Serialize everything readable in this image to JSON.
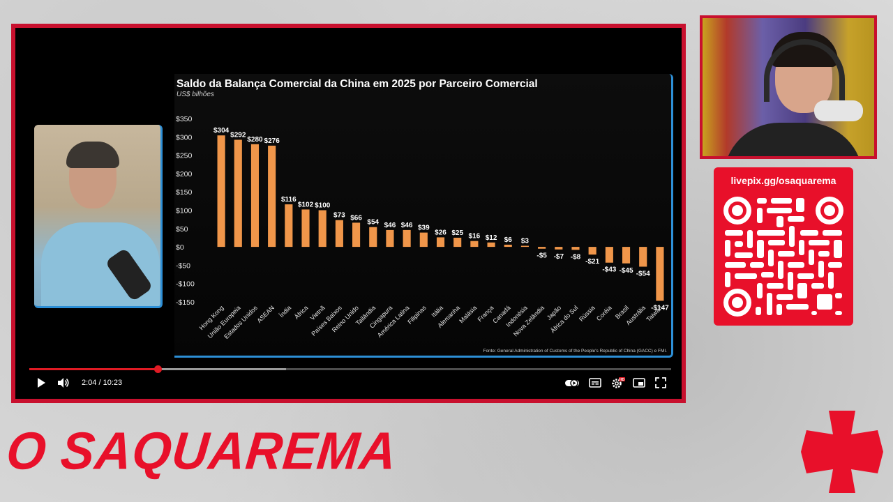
{
  "chart": {
    "title": "Saldo da Balança Comercial da China em 2025 por Parceiro Comercial",
    "subtitle": "US$ bilhões",
    "source": "Fonte: General Administration of Customs of the People's Republic of China (GACC) e FMI.",
    "bar_color": "#f0964a"
  },
  "chart_data": {
    "type": "bar",
    "title": "Saldo da Balança Comercial da China em 2025 por Parceiro Comercial",
    "subtitle": "US$ bilhões",
    "xlabel": "",
    "ylabel": "",
    "ylim": [
      -150,
      350
    ],
    "yticks": [
      350,
      300,
      250,
      200,
      150,
      100,
      50,
      0,
      -50,
      -100,
      -150
    ],
    "ytick_labels": [
      "$350",
      "$300",
      "$250",
      "$200",
      "$150",
      "$100",
      "$50",
      "$0",
      "-$50",
      "-$100",
      "-$150"
    ],
    "grid": false,
    "categories": [
      "Hong Kong",
      "União Europeia",
      "Estados Unidos",
      "ASEAN",
      "Índia",
      "África",
      "Vietnã",
      "Países Baixos",
      "Reino Unido",
      "Tailândia",
      "Cingapura",
      "América Latina",
      "Filipinas",
      "Itália",
      "Alemanha",
      "Malásia",
      "França",
      "Canadá",
      "Indonésia",
      "Nova Zelândia",
      "Japão",
      "África do Sul",
      "Rússia",
      "Coréia",
      "Brasil",
      "Austrália",
      "Taiwan"
    ],
    "values": [
      304,
      292,
      280,
      276,
      116,
      102,
      100,
      73,
      66,
      54,
      46,
      46,
      39,
      26,
      25,
      16,
      12,
      6,
      3,
      -5,
      -7,
      -8,
      -21,
      -43,
      -45,
      -54,
      -147
    ],
    "value_labels": [
      "$304",
      "$292",
      "$280",
      "$276",
      "$116",
      "$102",
      "$100",
      "$73",
      "$66",
      "$54",
      "$46",
      "$46",
      "$39",
      "$26",
      "$25",
      "$16",
      "$12",
      "$6",
      "$3",
      "-$5",
      "-$7",
      "-$8",
      "-$21",
      "-$43",
      "-$45",
      "-$54",
      "-$147"
    ]
  },
  "player": {
    "current_time": "2:04",
    "duration": "10:23",
    "time_display": "2:04 / 10:23",
    "progress_fraction": 0.2,
    "accent_color": "#e01b24",
    "icons": [
      "play-icon",
      "volume-icon",
      "autoplay-toggle-icon",
      "subtitles-icon",
      "settings-icon",
      "miniplayer-icon",
      "fullscreen-icon"
    ],
    "settings_badge": "HD"
  },
  "overlay": {
    "livepix_url": "livepix.gg/osaquarema",
    "brand_name": "O SAQUAREMA",
    "brand_color": "#e8102a"
  }
}
